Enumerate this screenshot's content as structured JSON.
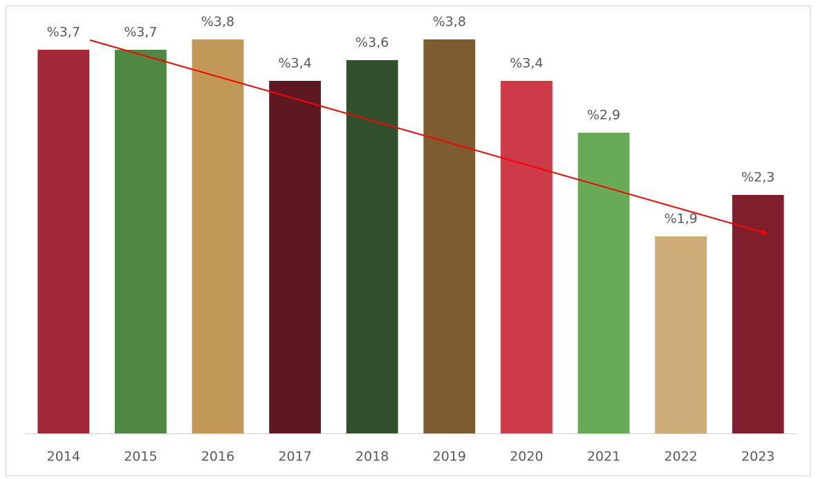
{
  "chart_data": {
    "type": "bar",
    "categories": [
      "2014",
      "2015",
      "2016",
      "2017",
      "2018",
      "2019",
      "2020",
      "2021",
      "2022",
      "2023"
    ],
    "values": [
      3.7,
      3.7,
      3.8,
      3.4,
      3.6,
      3.8,
      3.4,
      2.9,
      1.9,
      2.3
    ],
    "value_labels": [
      "%3,7",
      "%3,7",
      "%3,8",
      "%3,4",
      "%3,6",
      "%3,8",
      "%3,4",
      "%2,9",
      "%1,9",
      "%2,3"
    ],
    "colors": [
      "#a22838",
      "#4f8843",
      "#c29858",
      "#5e1822",
      "#30512b",
      "#7d5d2f",
      "#cd3a48",
      "#68ab57",
      "#cdac78",
      "#801f2c"
    ],
    "ylim": [
      0,
      4
    ]
  }
}
